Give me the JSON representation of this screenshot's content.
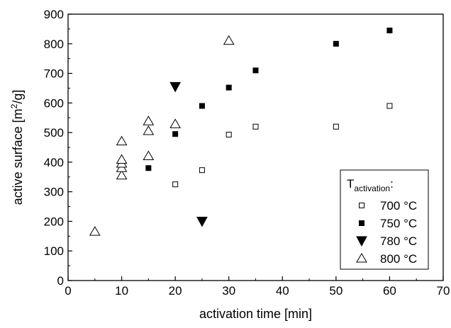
{
  "chart_data": {
    "type": "scatter",
    "title": "",
    "xlabel": "activation time [min]",
    "ylabel_parts": {
      "before": "active surface [m",
      "sup": "2",
      "after": "/g]"
    },
    "xlim": [
      0,
      70
    ],
    "ylim": [
      0,
      900
    ],
    "xticks": [
      "0",
      "10",
      "20",
      "30",
      "40",
      "50",
      "60",
      "70"
    ],
    "yticks": [
      "0",
      "100",
      "200",
      "300",
      "400",
      "500",
      "600",
      "700",
      "800",
      "900"
    ],
    "grid": false,
    "legend_placement": "bottom-right",
    "legend_title": {
      "main": "T",
      "sub": "activation",
      "suffix": ":"
    },
    "series": [
      {
        "name": "700 °C",
        "marker": "open-square",
        "points": [
          [
            20,
            325
          ],
          [
            25,
            373
          ],
          [
            30,
            493
          ],
          [
            35,
            520
          ],
          [
            50,
            520
          ],
          [
            60,
            590
          ]
        ]
      },
      {
        "name": "750 °C",
        "marker": "filled-square",
        "points": [
          [
            15,
            380
          ],
          [
            20,
            495
          ],
          [
            25,
            590
          ],
          [
            30,
            652
          ],
          [
            35,
            710
          ],
          [
            50,
            800
          ],
          [
            60,
            845
          ]
        ]
      },
      {
        "name": "780 °C",
        "marker": "filled-triangle-down",
        "points": [
          [
            20,
            655
          ],
          [
            25,
            200
          ]
        ]
      },
      {
        "name": "800 °C",
        "marker": "open-triangle-up",
        "points": [
          [
            5,
            165
          ],
          [
            10,
            355
          ],
          [
            10,
            380
          ],
          [
            10,
            395
          ],
          [
            10,
            408
          ],
          [
            10,
            470
          ],
          [
            15,
            420
          ],
          [
            15,
            505
          ],
          [
            15,
            538
          ],
          [
            20,
            528
          ],
          [
            30,
            810
          ]
        ]
      }
    ]
  }
}
